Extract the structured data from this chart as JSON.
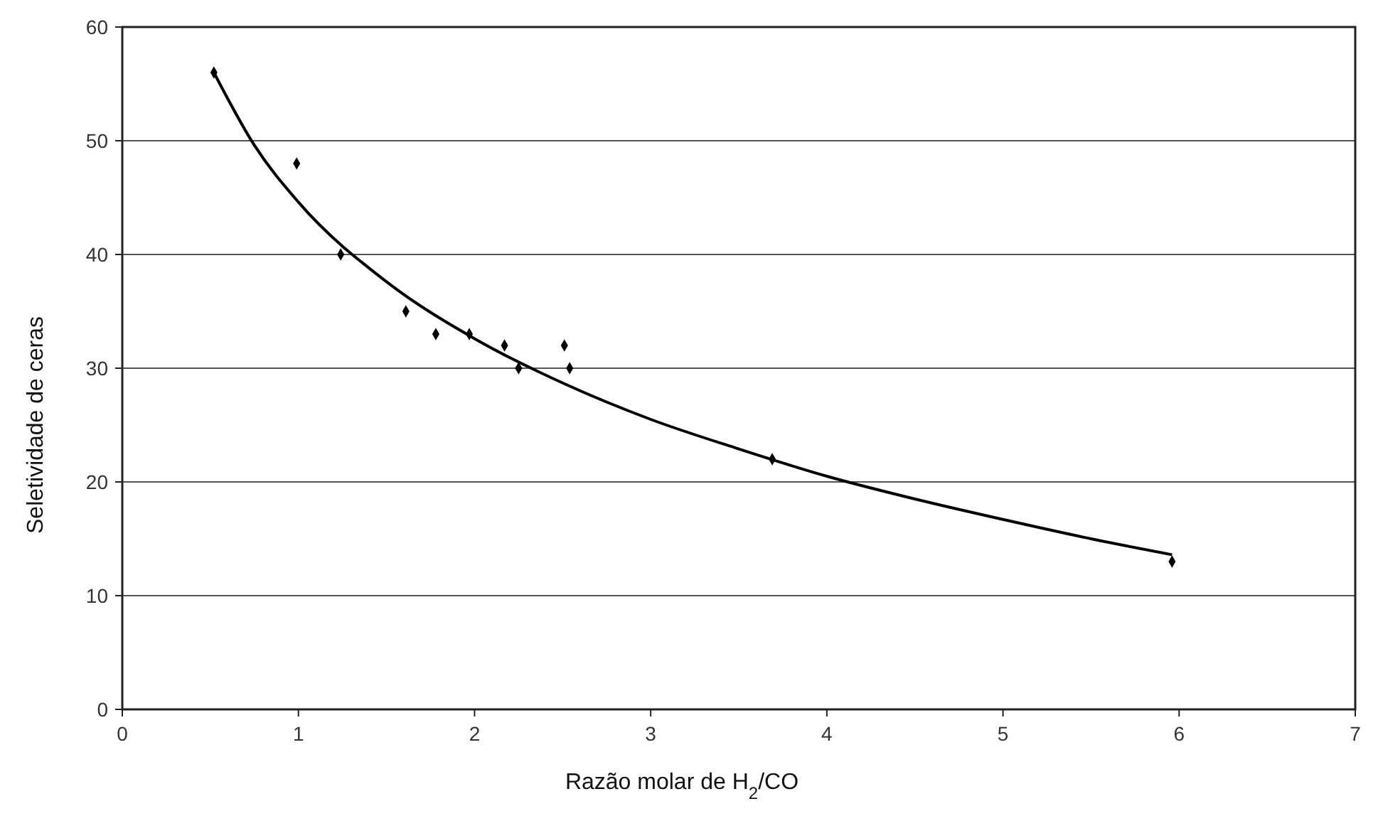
{
  "chart_data": {
    "type": "scatter",
    "xlabel": "Razão molar de H$_{2}$/CO",
    "ylabel": "Seletividade de ceras",
    "xlim": [
      0,
      7
    ],
    "xticks": [
      0,
      1,
      2,
      3,
      4,
      5,
      6,
      7
    ],
    "ylim": [
      0,
      60
    ],
    "yticks": [
      0,
      10,
      20,
      30,
      40,
      50,
      60
    ],
    "grid": "y",
    "series": [
      {
        "color": "#000000",
        "marker": "diamond",
        "x": [
          0.52,
          0.99,
          1.24,
          1.61,
          1.78,
          1.97,
          2.17,
          2.25,
          2.51,
          2.54,
          3.69,
          5.96
        ],
        "values": [
          56,
          48,
          40,
          35,
          33,
          33,
          32,
          30,
          32,
          30,
          22,
          13
        ]
      },
      {
        "type": "line",
        "color": "#000000",
        "marker": "none",
        "line_style": "solid",
        "x": [
          0.52,
          0.75,
          1,
          1.5,
          2,
          2.5,
          3,
          3.5,
          4,
          4.5,
          5,
          5.5,
          5.96
        ],
        "values": [
          56,
          49.6,
          44.6,
          37.6,
          32.6,
          28.7,
          25.5,
          22.9,
          20.5,
          18.5,
          16.7,
          15,
          13.6
        ]
      }
    ]
  }
}
